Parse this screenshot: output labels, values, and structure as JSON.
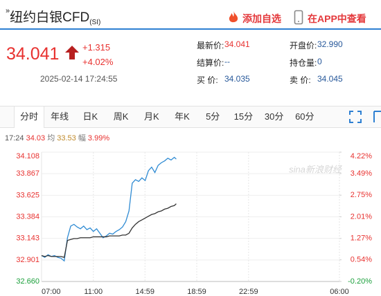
{
  "header": {
    "arrow": "»",
    "title": "纽约白银CFD",
    "code": "(SI)",
    "add_watchlist": "添加自选",
    "open_app": "在APP中查看"
  },
  "quote": {
    "price": "34.041",
    "change": "+1.315",
    "change_pct": "+4.02%",
    "time": "2025-02-14 17:24:55",
    "fields": [
      {
        "label": "最新价:",
        "value": "34.041"
      },
      {
        "label": "开盘价:",
        "value": "32.990"
      },
      {
        "label": "结算价:",
        "value": "--"
      },
      {
        "label": "持仓量:",
        "value": "0"
      },
      {
        "label": "买 价:",
        "value": "34.035"
      },
      {
        "label": "卖 价:",
        "value": "34.045"
      }
    ]
  },
  "tabs": {
    "items": [
      "分时",
      "年线",
      "日K",
      "周K",
      "月K",
      "年K",
      "5分",
      "15分",
      "30分",
      "60分"
    ],
    "selected": 0
  },
  "info_line": {
    "time": "17:24",
    "price": "34.03",
    "avg_label": "均",
    "avg": "33.53",
    "range_label": "幅",
    "range": "3.99%"
  },
  "chart_data": {
    "type": "line",
    "watermark": "sina新浪财经",
    "x": [
      "07:00",
      "07:15",
      "07:30",
      "07:45",
      "08:00",
      "08:15",
      "08:30",
      "08:45",
      "09:00",
      "09:15",
      "09:30",
      "09:45",
      "10:00",
      "10:15",
      "10:30",
      "10:45",
      "11:00",
      "11:15",
      "11:30",
      "11:45",
      "12:00",
      "12:15",
      "12:30",
      "12:45",
      "13:00",
      "13:15",
      "13:30",
      "13:45",
      "14:00",
      "14:15",
      "14:30",
      "14:45",
      "15:00",
      "15:15",
      "15:30",
      "15:45",
      "16:00",
      "16:15",
      "16:30",
      "16:45",
      "17:00",
      "17:15",
      "17:24"
    ],
    "series": [
      {
        "color": "#2f8bd3",
        "values": [
          32.95,
          32.93,
          32.96,
          32.94,
          32.95,
          32.93,
          32.92,
          32.89,
          33.15,
          33.28,
          33.3,
          33.27,
          33.25,
          33.28,
          33.24,
          33.26,
          33.22,
          33.25,
          33.2,
          33.15,
          33.17,
          33.2,
          33.19,
          33.22,
          33.24,
          33.27,
          33.33,
          33.45,
          33.76,
          33.8,
          33.78,
          33.82,
          33.79,
          33.9,
          33.94,
          33.88,
          33.96,
          33.99,
          34.01,
          34.04,
          34.02,
          34.05,
          34.03
        ]
      },
      {
        "color": "#333333",
        "values": [
          32.95,
          32.94,
          32.95,
          32.94,
          32.94,
          32.94,
          32.94,
          32.93,
          33.12,
          33.13,
          33.14,
          33.14,
          33.15,
          33.15,
          33.15,
          33.15,
          33.16,
          33.16,
          33.16,
          33.16,
          33.16,
          33.17,
          33.17,
          33.17,
          33.17,
          33.18,
          33.18,
          33.2,
          33.26,
          33.3,
          33.33,
          33.35,
          33.37,
          33.39,
          33.41,
          33.42,
          33.44,
          33.45,
          33.47,
          33.48,
          33.5,
          33.51,
          33.53
        ]
      }
    ],
    "xticks": [
      "07:00",
      "11:00",
      "14:59",
      "18:59",
      "22:59",
      "06:00"
    ],
    "ylim": [
      32.66,
      34.108
    ],
    "yticks": [
      {
        "value": 34.108,
        "label": "34.108"
      },
      {
        "value": 33.867,
        "label": "33.867"
      },
      {
        "value": 33.625,
        "label": "33.625"
      },
      {
        "value": 33.384,
        "label": "33.384"
      },
      {
        "value": 33.143,
        "label": "33.143"
      },
      {
        "value": 32.901,
        "label": "32.901"
      },
      {
        "value": 32.66,
        "label": "32.660"
      }
    ],
    "y2lim": [
      -0.2,
      4.22
    ],
    "y2ticks": [
      {
        "value": 4.22,
        "label": "4.22%"
      },
      {
        "value": 3.49,
        "label": "3.49%"
      },
      {
        "value": 2.75,
        "label": "2.75%"
      },
      {
        "value": 2.01,
        "label": "2.01%"
      },
      {
        "value": 1.27,
        "label": "1.27%"
      },
      {
        "value": 0.54,
        "label": "0.54%"
      },
      {
        "value": -0.2,
        "label": "-0.20%"
      }
    ],
    "up_color": "#e8312f",
    "down_color": "#1a9f3a",
    "grid": true
  }
}
